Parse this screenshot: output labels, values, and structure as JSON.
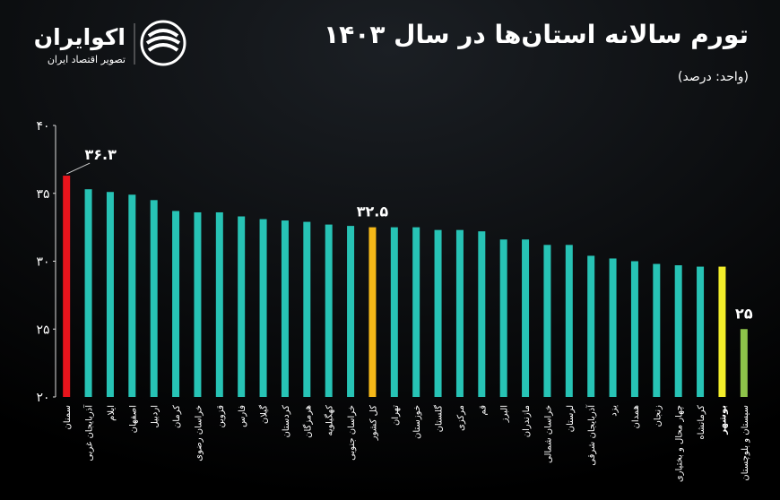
{
  "brand": {
    "name": "اکوایران",
    "tagline": "تصویر اقتصاد ایران"
  },
  "chart_data": {
    "type": "bar",
    "title": "تورم سالانه استان‌ها در سال ۱۴۰۳",
    "subtitle": "(واحد: درصد)",
    "categories": [
      "سمنان",
      "آذربایجان غربی",
      "ایلام",
      "اصفهان",
      "اردبیل",
      "کرمان",
      "خراسان رضوی",
      "قزوین",
      "فارس",
      "گیلان",
      "کردستان",
      "هرمزگان",
      "کهگیلویه",
      "خراسان جنوبی",
      "کل کشور",
      "تهران",
      "خوزستان",
      "گلستان",
      "مرکزی",
      "قم",
      "البرز",
      "مازندران",
      "خراسان شمالی",
      "لرستان",
      "آذربایجان شرقی",
      "یزد",
      "همدان",
      "زنجان",
      "چهار محال و بختیاری",
      "کرمانشاه",
      "بوشهر",
      "سیستان و بلوچستان"
    ],
    "values": [
      36.3,
      35.3,
      35.1,
      34.9,
      34.5,
      33.7,
      33.6,
      33.6,
      33.3,
      33.1,
      33.0,
      32.9,
      32.7,
      32.6,
      32.5,
      32.5,
      32.5,
      32.3,
      32.3,
      32.2,
      31.6,
      31.6,
      31.2,
      31.2,
      30.4,
      30.2,
      30.0,
      29.8,
      29.7,
      29.6,
      29.6,
      25
    ],
    "value_labels": [
      "۳۶.۳",
      null,
      null,
      null,
      null,
      null,
      null,
      null,
      null,
      null,
      null,
      null,
      null,
      null,
      "۳۲.۵",
      null,
      null,
      null,
      null,
      null,
      null,
      null,
      null,
      null,
      null,
      null,
      null,
      null,
      null,
      null,
      null,
      "۲۵"
    ],
    "colors": [
      "#e8141c",
      "#27c3b5",
      "#27c3b5",
      "#27c3b5",
      "#27c3b5",
      "#27c3b5",
      "#27c3b5",
      "#27c3b5",
      "#27c3b5",
      "#27c3b5",
      "#27c3b5",
      "#27c3b5",
      "#27c3b5",
      "#27c3b5",
      "#f5b818",
      "#27c3b5",
      "#27c3b5",
      "#27c3b5",
      "#27c3b5",
      "#27c3b5",
      "#27c3b5",
      "#27c3b5",
      "#27c3b5",
      "#27c3b5",
      "#27c3b5",
      "#27c3b5",
      "#27c3b5",
      "#27c3b5",
      "#27c3b5",
      "#27c3b5",
      "#f3ee2a",
      "#8dc34a"
    ],
    "category_colors": [
      "#ffffff",
      "#ffffff",
      "#ffffff",
      "#ffffff",
      "#ffffff",
      "#ffffff",
      "#ffffff",
      "#ffffff",
      "#ffffff",
      "#ffffff",
      "#ffffff",
      "#ffffff",
      "#ffffff",
      "#ffffff",
      "#ffffff",
      "#ffffff",
      "#ffffff",
      "#ffffff",
      "#ffffff",
      "#ffffff",
      "#ffffff",
      "#ffffff",
      "#ffffff",
      "#ffffff",
      "#ffffff",
      "#ffffff",
      "#ffffff",
      "#ffffff",
      "#ffffff",
      "#ffffff",
      "#f3ee2a",
      "#ffffff"
    ],
    "ylim": [
      20,
      40
    ],
    "yticks": [
      {
        "value": 20,
        "label": "۲۰"
      },
      {
        "value": 25,
        "label": "۲۵"
      },
      {
        "value": 30,
        "label": "۳۰"
      },
      {
        "value": 35,
        "label": "۳۵"
      },
      {
        "value": 40,
        "label": "۴۰"
      }
    ],
    "grid": false
  }
}
